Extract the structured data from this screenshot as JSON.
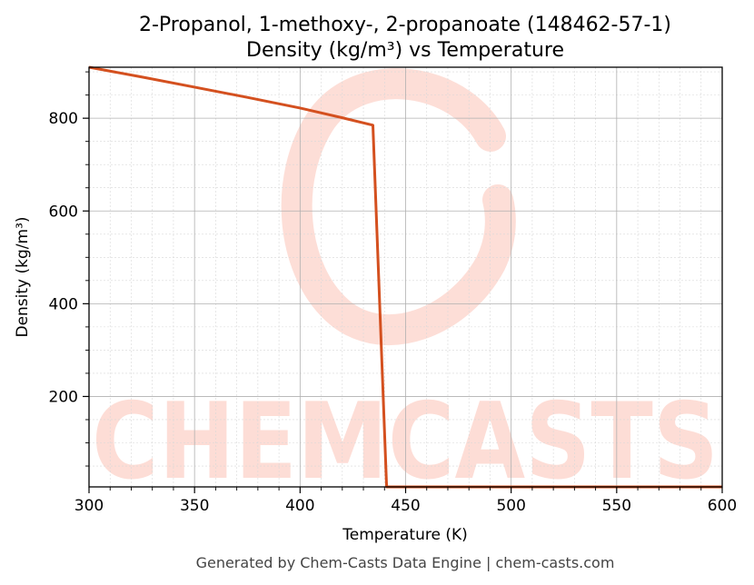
{
  "chart_data": {
    "type": "line",
    "title": "2-Propanol, 1-methoxy-, 2-propanoate (148462-57-1)",
    "subtitle": "Density (kg/m³) vs Temperature",
    "xlabel": "Temperature (K)",
    "ylabel": "Density (kg/m³)",
    "xlim": [
      300,
      600
    ],
    "ylim": [
      5,
      910
    ],
    "xticks": [
      300,
      350,
      400,
      450,
      500,
      550,
      600
    ],
    "yticks": [
      200,
      400,
      600,
      800
    ],
    "grid": true,
    "series": [
      {
        "color": "#d4501f",
        "x": [
          300,
          325,
          350,
          375,
          400,
          420,
          434.5,
          441,
          450,
          500,
          550,
          600
        ],
        "y": [
          910,
          889,
          867,
          845,
          822,
          801,
          785,
          5,
          5,
          5,
          5,
          5
        ]
      }
    ]
  },
  "watermark": {
    "text": "CHEMCASTS",
    "color": "#fdd8d0"
  },
  "footer": "Generated by Chem-Casts Data Engine | chem-casts.com"
}
